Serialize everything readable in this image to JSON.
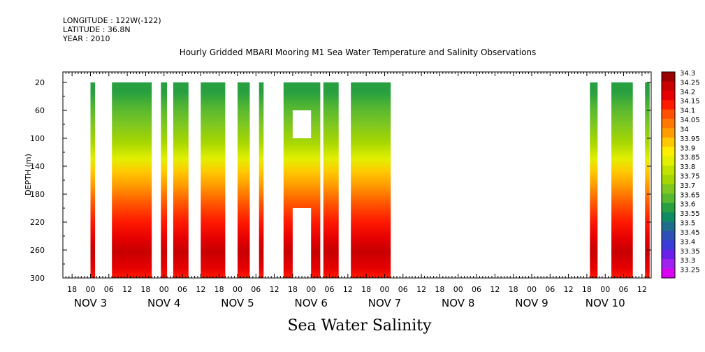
{
  "header": {
    "longitude": "LONGITUDE : 122W(-122)",
    "latitude": "LATITUDE : 36.8N",
    "year": "YEAR : 2010"
  },
  "chart_data": {
    "type": "heatmap",
    "title": "Hourly Gridded MBARI Mooring M1 Sea Water Temperature and Salinity Observations",
    "footer": "Sea Water Salinity",
    "ylabel": "DEPTH (m)",
    "x_range_hours": [
      0,
      192
    ],
    "x_start": "NOV 2 15:00",
    "ylim": [
      300,
      5
    ],
    "y_ticks": [
      20,
      60,
      100,
      140,
      180,
      220,
      260,
      300
    ],
    "hour_ticks": [
      "18",
      "00",
      "06",
      "12",
      "18",
      "00",
      "06",
      "12",
      "18",
      "00",
      "06",
      "12",
      "18",
      "00",
      "06",
      "12",
      "18",
      "00",
      "06",
      "12",
      "18",
      "00",
      "06",
      "12",
      "18",
      "00",
      "06",
      "12",
      "18",
      "00",
      "06",
      "12"
    ],
    "day_labels": [
      "NOV 3",
      "NOV 4",
      "NOV 5",
      "NOV 6",
      "NOV 7",
      "NOV 8",
      "NOV 9",
      "NOV 10"
    ],
    "colorbar_levels": [
      "34.3",
      "34.25",
      "34.2",
      "34.15",
      "34.1",
      "34.05",
      "34",
      "33.95",
      "33.9",
      "33.85",
      "33.8",
      "33.75",
      "33.7",
      "33.65",
      "33.6",
      "33.55",
      "33.5",
      "33.45",
      "33.4",
      "33.35",
      "33.3",
      "33.25"
    ],
    "colors": [
      "#9a0000",
      "#c80000",
      "#e60000",
      "#ff1a00",
      "#ff5000",
      "#ff7800",
      "#ff9c00",
      "#ffc800",
      "#ffee00",
      "#e2ef00",
      "#c2e200",
      "#a6d600",
      "#80c820",
      "#58b830",
      "#28a040",
      "#108a60",
      "#206c8c",
      "#2e50b4",
      "#3a3cd8",
      "#6a20e8",
      "#a020f0",
      "#d800f0"
    ],
    "data_segments": [
      {
        "start": "NOV 3 00:00",
        "end": "NOV 3 01:30",
        "note": "narrow column"
      },
      {
        "start": "NOV 3 07:00",
        "end": "NOV 3 20:00"
      },
      {
        "start": "NOV 3 23:00",
        "end": "NOV 4 01:00"
      },
      {
        "start": "NOV 4 03:00",
        "end": "NOV 4 08:00"
      },
      {
        "start": "NOV 4 12:00",
        "end": "NOV 4 20:00"
      },
      {
        "start": "NOV 5 00:00",
        "end": "NOV 5 04:00"
      },
      {
        "start": "NOV 5 07:00",
        "end": "NOV 5 08:30"
      },
      {
        "start": "NOV 5 15:00",
        "end": "NOV 6 03:00",
        "gaps": [
          {
            "start": "NOV 5 18:00",
            "end": "NOV 5 24:00",
            "depth": [
              60,
              100
            ]
          },
          {
            "start": "NOV 5 18:00",
            "end": "NOV 5 24:00",
            "depth": [
              200,
              300
            ]
          }
        ]
      },
      {
        "start": "NOV 6 04:00",
        "end": "NOV 6 09:00"
      },
      {
        "start": "NOV 6 13:00",
        "end": "NOV 7 02:00"
      },
      {
        "start": "NOV 9 19:00",
        "end": "NOV 9 21:30"
      },
      {
        "start": "NOV 10 02:00",
        "end": "NOV 10 09:00"
      },
      {
        "start": "NOV 10 13:00",
        "end": "NOV 10 14:30"
      }
    ],
    "depth_profile": [
      {
        "depth": 20,
        "value": 33.6
      },
      {
        "depth": 45,
        "value": 33.65
      },
      {
        "depth": 70,
        "value": 33.7
      },
      {
        "depth": 95,
        "value": 33.78
      },
      {
        "depth": 120,
        "value": 33.87
      },
      {
        "depth": 140,
        "value": 33.95
      },
      {
        "depth": 160,
        "value": 34.02
      },
      {
        "depth": 190,
        "value": 34.1
      },
      {
        "depth": 215,
        "value": 34.15
      },
      {
        "depth": 240,
        "value": 34.2
      },
      {
        "depth": 260,
        "value": 34.25
      },
      {
        "depth": 285,
        "value": 34.2
      },
      {
        "depth": 300,
        "value": 34.18
      }
    ]
  }
}
